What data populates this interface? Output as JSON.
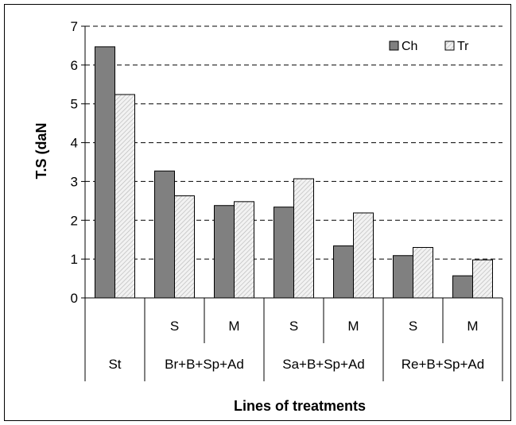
{
  "chart_data": {
    "type": "bar",
    "title": "",
    "xlabel": "Lines of treatments",
    "ylabel": "T.S (daN",
    "ylim": [
      0,
      7
    ],
    "yticks": [
      0,
      1,
      2,
      3,
      4,
      5,
      6,
      7
    ],
    "grid": true,
    "legend_position": "top-right",
    "categories": [
      "St",
      "S",
      "M",
      "S",
      "M",
      "S",
      "M"
    ],
    "groups": [
      {
        "label": "St",
        "span": 1
      },
      {
        "label": "Br+B+Sp+Ad",
        "span": 2
      },
      {
        "label": "Sa+B+Sp+Ad",
        "span": 2
      },
      {
        "label": "Re+B+Sp+Ad",
        "span": 2
      }
    ],
    "series": [
      {
        "name": "Ch",
        "values": [
          6.47,
          3.27,
          2.38,
          2.34,
          1.34,
          1.09,
          0.57
        ],
        "color": "#808080"
      },
      {
        "name": "Tr",
        "values": [
          5.24,
          2.63,
          2.48,
          3.07,
          2.19,
          1.3,
          0.98
        ],
        "color": "#e8e8e8"
      }
    ]
  }
}
